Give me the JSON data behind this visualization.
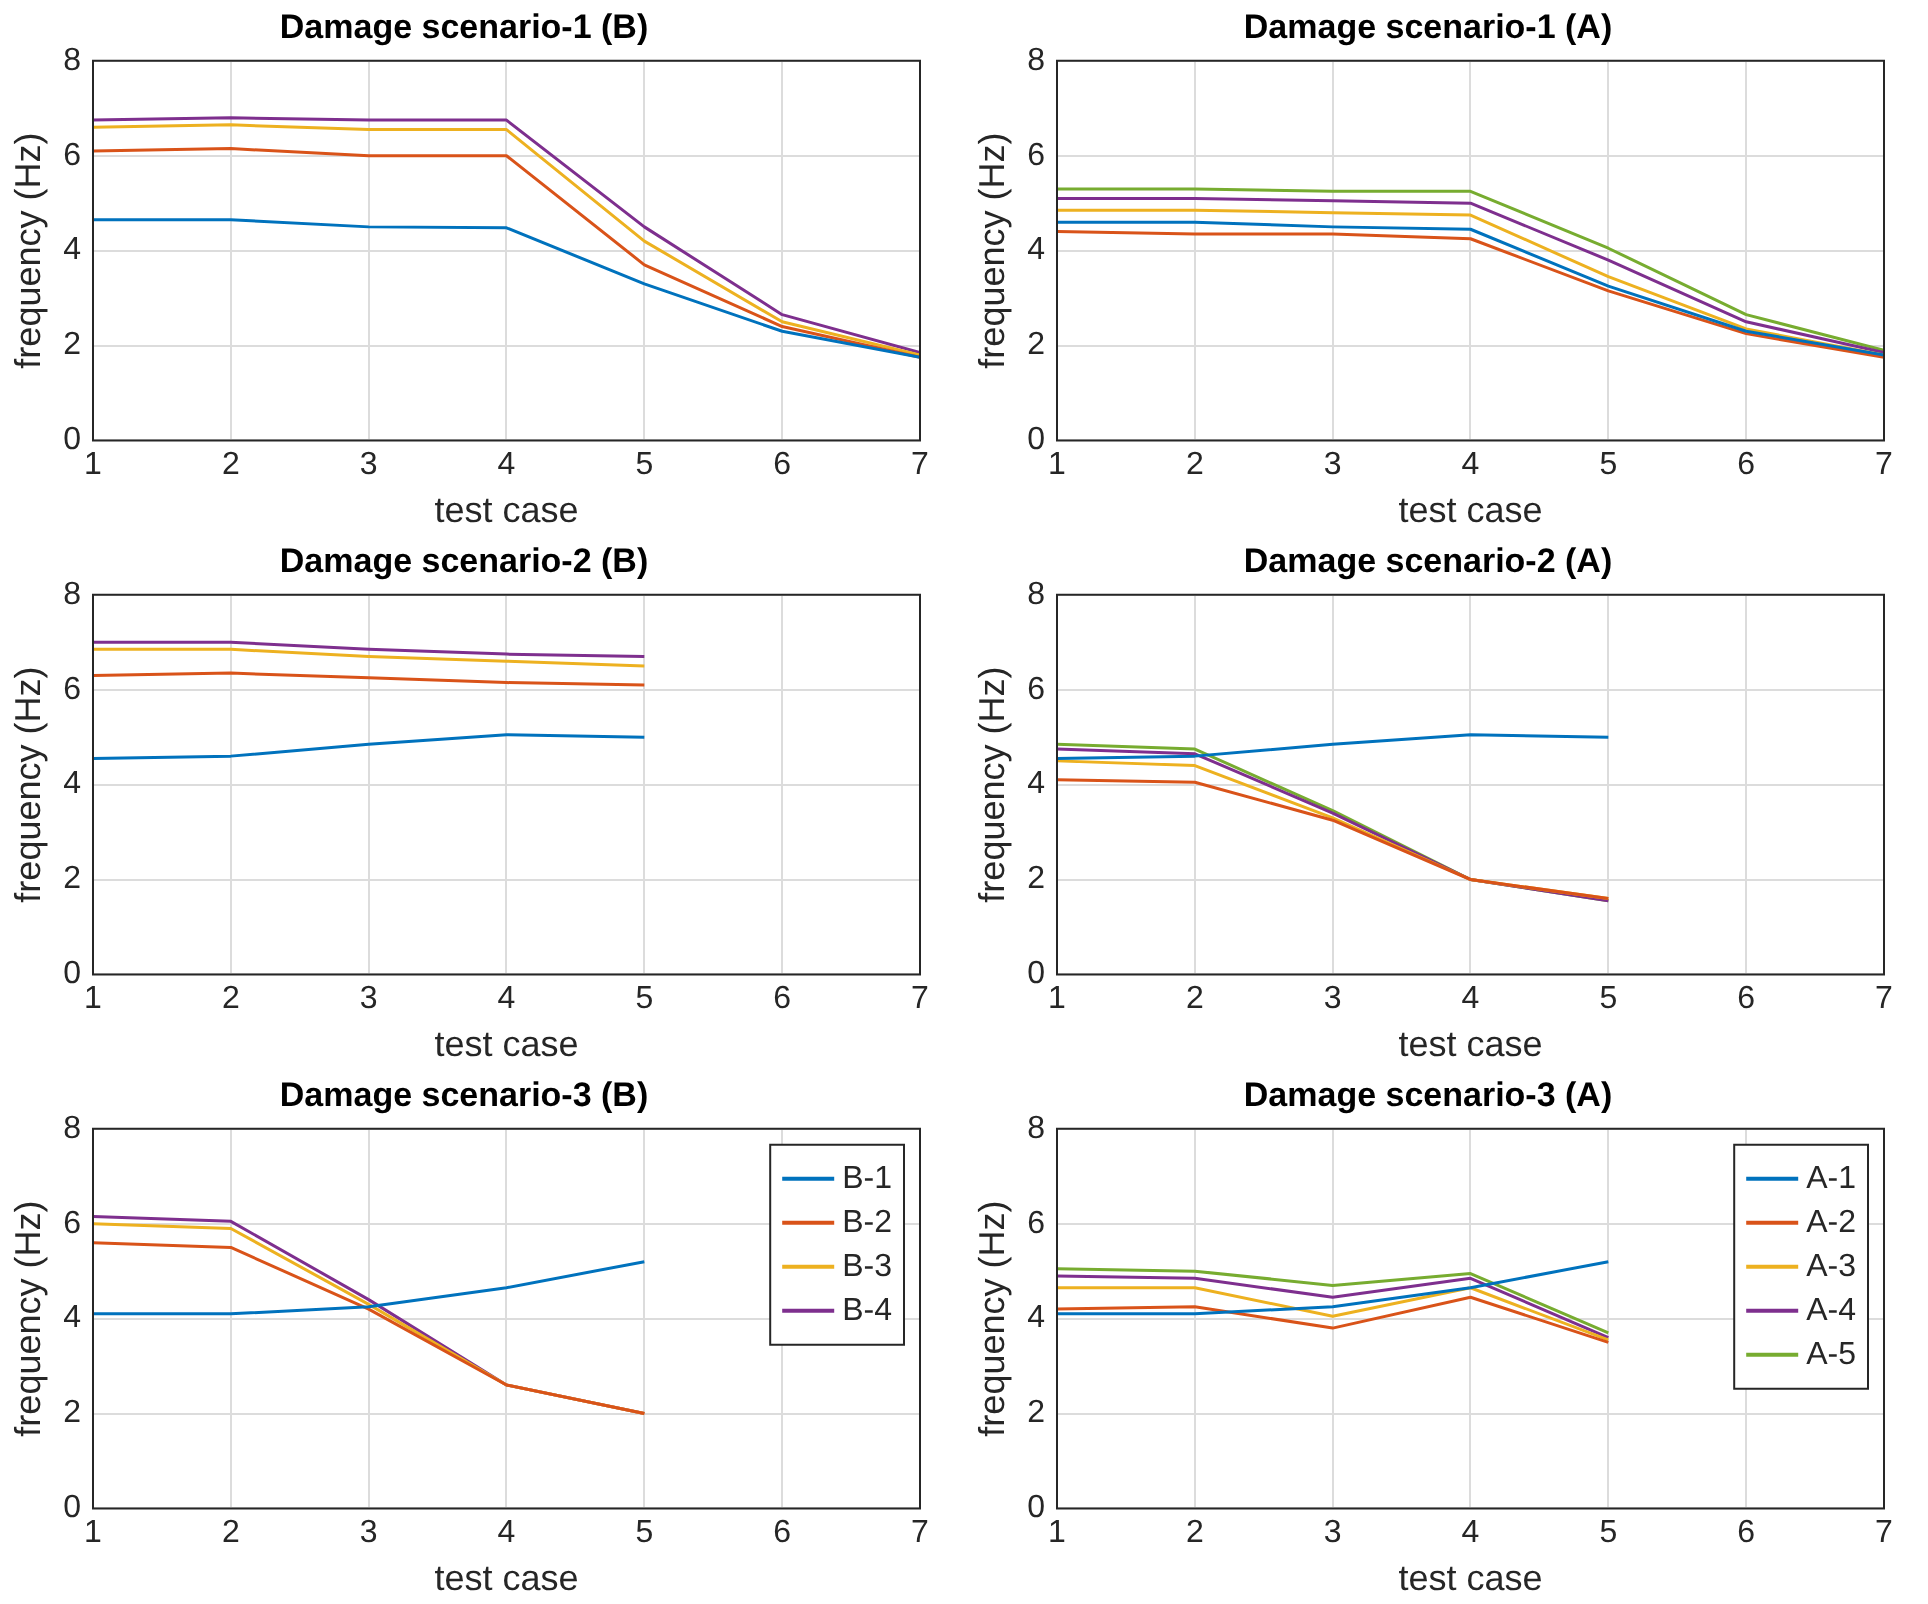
{
  "chart_data": [
    {
      "type": "line",
      "title": "Damage scenario-1 (B)",
      "xlabel": "test case",
      "ylabel": "frequency (Hz)",
      "x": [
        1,
        2,
        3,
        4,
        5,
        6,
        7
      ],
      "xlim": [
        1,
        7
      ],
      "xticks": [
        1,
        2,
        3,
        4,
        5,
        6,
        7
      ],
      "ylim": [
        0,
        8
      ],
      "yticks": [
        0,
        2,
        4,
        6,
        8
      ],
      "grid": true,
      "series": [
        {
          "color": "#0072bd",
          "values": [
            4.65,
            4.65,
            4.5,
            4.48,
            3.3,
            2.3,
            1.75
          ]
        },
        {
          "color": "#d95319",
          "values": [
            6.1,
            6.15,
            6.0,
            6.0,
            3.7,
            2.4,
            1.75
          ]
        },
        {
          "color": "#edb120",
          "values": [
            6.6,
            6.65,
            6.55,
            6.55,
            4.2,
            2.5,
            1.8
          ]
        },
        {
          "color": "#7e2f8e",
          "values": [
            6.75,
            6.8,
            6.75,
            6.75,
            4.5,
            2.65,
            1.85
          ]
        }
      ]
    },
    {
      "type": "line",
      "title": "Damage scenario-1 (A)",
      "xlabel": "test case",
      "ylabel": "frequency (Hz)",
      "x": [
        1,
        2,
        3,
        4,
        5,
        6,
        7
      ],
      "xlim": [
        1,
        7
      ],
      "xticks": [
        1,
        2,
        3,
        4,
        5,
        6,
        7
      ],
      "ylim": [
        0,
        8
      ],
      "yticks": [
        0,
        2,
        4,
        6,
        8
      ],
      "grid": true,
      "series": [
        {
          "color": "#0072bd",
          "values": [
            4.6,
            4.6,
            4.5,
            4.45,
            3.25,
            2.3,
            1.8
          ]
        },
        {
          "color": "#d95319",
          "values": [
            4.4,
            4.35,
            4.35,
            4.25,
            3.15,
            2.25,
            1.75
          ]
        },
        {
          "color": "#edb120",
          "values": [
            4.85,
            4.85,
            4.8,
            4.75,
            3.45,
            2.35,
            1.8
          ]
        },
        {
          "color": "#7e2f8e",
          "values": [
            5.1,
            5.1,
            5.05,
            5.0,
            3.8,
            2.5,
            1.85
          ]
        },
        {
          "color": "#77ac30",
          "values": [
            5.3,
            5.3,
            5.25,
            5.25,
            4.05,
            2.65,
            1.9
          ]
        }
      ]
    },
    {
      "type": "line",
      "title": "Damage scenario-2 (B)",
      "xlabel": "test case",
      "ylabel": "frequency (Hz)",
      "x": [
        1,
        2,
        3,
        4,
        5
      ],
      "xlim": [
        1,
        7
      ],
      "xticks": [
        1,
        2,
        3,
        4,
        5,
        6,
        7
      ],
      "ylim": [
        0,
        8
      ],
      "yticks": [
        0,
        2,
        4,
        6,
        8
      ],
      "grid": true,
      "series": [
        {
          "color": "#0072bd",
          "values": [
            4.55,
            4.6,
            4.85,
            5.05,
            5.0
          ]
        },
        {
          "color": "#d95319",
          "values": [
            6.3,
            6.35,
            6.25,
            6.15,
            6.1
          ]
        },
        {
          "color": "#edb120",
          "values": [
            6.85,
            6.85,
            6.7,
            6.6,
            6.5
          ]
        },
        {
          "color": "#7e2f8e",
          "values": [
            7.0,
            7.0,
            6.85,
            6.75,
            6.7
          ]
        }
      ]
    },
    {
      "type": "line",
      "title": "Damage scenario-2 (A)",
      "xlabel": "test case",
      "ylabel": "frequency (Hz)",
      "x": [
        1,
        2,
        3,
        4,
        5
      ],
      "xlim": [
        1,
        7
      ],
      "xticks": [
        1,
        2,
        3,
        4,
        5,
        6,
        7
      ],
      "ylim": [
        0,
        8
      ],
      "yticks": [
        0,
        2,
        4,
        6,
        8
      ],
      "grid": true,
      "series": [
        {
          "color": "#0072bd",
          "values": [
            4.55,
            4.6,
            4.85,
            5.05,
            5.0
          ]
        },
        {
          "color": "#d95319",
          "values": [
            4.1,
            4.05,
            3.25,
            2.0,
            1.6
          ]
        },
        {
          "color": "#edb120",
          "values": [
            4.5,
            4.4,
            3.3,
            2.0,
            1.6
          ]
        },
        {
          "color": "#7e2f8e",
          "values": [
            4.75,
            4.65,
            3.4,
            2.0,
            1.55
          ]
        },
        {
          "color": "#77ac30",
          "values": [
            4.85,
            4.75,
            3.45,
            2.0,
            1.55
          ]
        }
      ]
    },
    {
      "type": "line",
      "title": "Damage scenario-3 (B)",
      "xlabel": "test case",
      "ylabel": "frequency (Hz)",
      "x": [
        1,
        2,
        3,
        4,
        5
      ],
      "xlim": [
        1,
        7
      ],
      "xticks": [
        1,
        2,
        3,
        4,
        5,
        6,
        7
      ],
      "ylim": [
        0,
        8
      ],
      "yticks": [
        0,
        2,
        4,
        6,
        8
      ],
      "grid": true,
      "legend": "top right",
      "series": [
        {
          "name": "B-1",
          "color": "#0072bd",
          "values": [
            4.1,
            4.1,
            4.25,
            4.65,
            5.2
          ]
        },
        {
          "name": "B-2",
          "color": "#d95319",
          "values": [
            5.6,
            5.5,
            4.2,
            2.6,
            2.0
          ]
        },
        {
          "name": "B-3",
          "color": "#edb120",
          "values": [
            6.0,
            5.9,
            4.3,
            2.6,
            2.0
          ]
        },
        {
          "name": "B-4",
          "color": "#7e2f8e",
          "values": [
            6.15,
            6.05,
            4.4,
            2.6,
            2.0
          ]
        }
      ]
    },
    {
      "type": "line",
      "title": "Damage scenario-3 (A)",
      "xlabel": "test case",
      "ylabel": "frequency (Hz)",
      "x": [
        1,
        2,
        3,
        4,
        5
      ],
      "xlim": [
        1,
        7
      ],
      "xticks": [
        1,
        2,
        3,
        4,
        5,
        6,
        7
      ],
      "ylim": [
        0,
        8
      ],
      "yticks": [
        0,
        2,
        4,
        6,
        8
      ],
      "grid": true,
      "legend": "top right",
      "series": [
        {
          "name": "A-1",
          "color": "#0072bd",
          "values": [
            4.1,
            4.1,
            4.25,
            4.65,
            5.2
          ]
        },
        {
          "name": "A-2",
          "color": "#d95319",
          "values": [
            4.2,
            4.25,
            3.8,
            4.45,
            3.5
          ]
        },
        {
          "name": "A-3",
          "color": "#edb120",
          "values": [
            4.65,
            4.65,
            4.05,
            4.65,
            3.55
          ]
        },
        {
          "name": "A-4",
          "color": "#7e2f8e",
          "values": [
            4.9,
            4.85,
            4.45,
            4.85,
            3.6
          ]
        },
        {
          "name": "A-5",
          "color": "#77ac30",
          "values": [
            5.05,
            5.0,
            4.7,
            4.95,
            3.7
          ]
        }
      ]
    }
  ]
}
